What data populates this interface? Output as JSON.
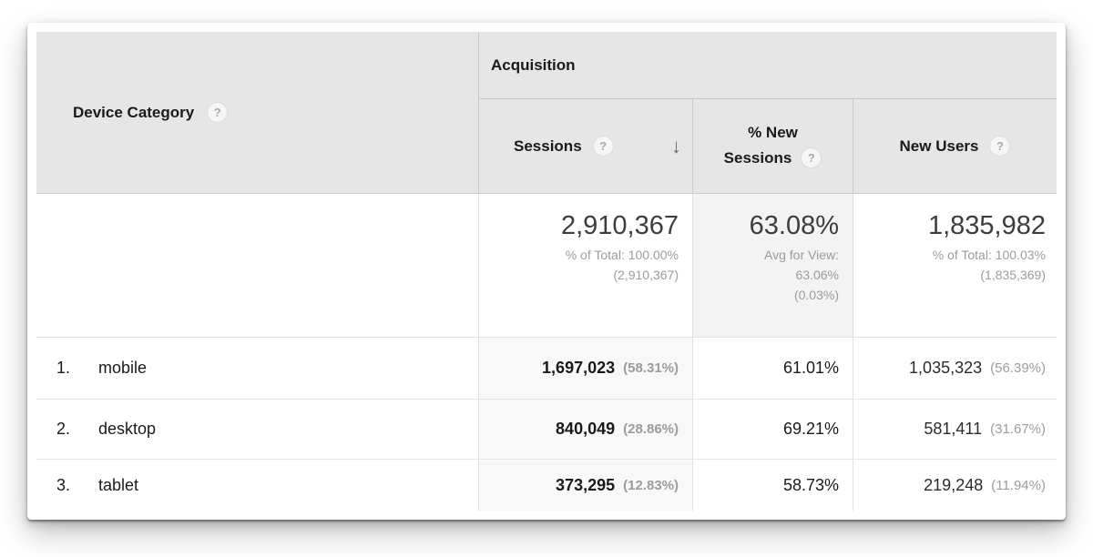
{
  "table": {
    "device_header": "Device Category",
    "group_header": "Acquisition",
    "columns": {
      "sessions": {
        "label": "Sessions",
        "sorted": "desc"
      },
      "new_sessions": {
        "label_line1": "% New",
        "label_line2": "Sessions"
      },
      "new_users": {
        "label": "New Users"
      }
    },
    "icons": {
      "help": "?",
      "sort_desc": "↓"
    },
    "summary": {
      "sessions": {
        "value": "2,910,367",
        "line1": "% of Total: 100.00%",
        "line2": "(2,910,367)"
      },
      "new_sessions": {
        "value": "63.08%",
        "line1": "Avg for View:",
        "line2": "63.06%",
        "line3": "(0.03%)"
      },
      "new_users": {
        "value": "1,835,982",
        "line1": "% of Total: 100.03%",
        "line2": "(1,835,369)"
      }
    },
    "rows": [
      {
        "index": "1.",
        "device": "mobile",
        "sessions": "1,697,023",
        "sessions_pct": "(58.31%)",
        "new_sessions": "61.01%",
        "new_users": "1,035,323",
        "new_users_pct": "(56.39%)"
      },
      {
        "index": "2.",
        "device": "desktop",
        "sessions": "840,049",
        "sessions_pct": "(28.86%)",
        "new_sessions": "69.21%",
        "new_users": "581,411",
        "new_users_pct": "(31.67%)"
      },
      {
        "index": "3.",
        "device": "tablet",
        "sessions": "373,295",
        "sessions_pct": "(12.83%)",
        "new_sessions": "58.73%",
        "new_users": "219,248",
        "new_users_pct": "(11.94%)"
      }
    ],
    "colors": {
      "header_bg": "#e6e6e6",
      "sorted_column_bg": "#f8f8f8",
      "summary_pct_bg": "#f3f3f3",
      "secondary_text": "#9c9c9c"
    }
  }
}
